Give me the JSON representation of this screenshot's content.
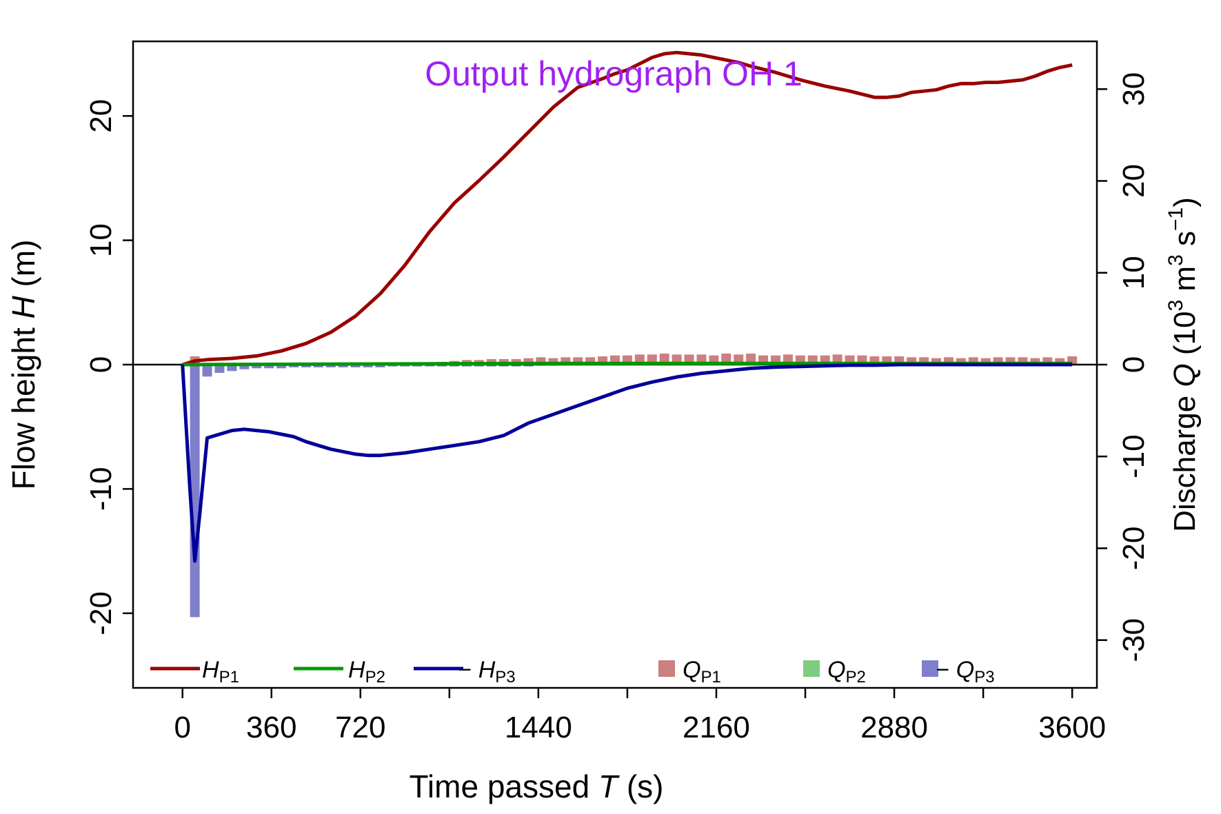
{
  "chart_data": {
    "type": "line",
    "title": "Output hydrograph OH 1",
    "title_color": "#a020f0",
    "xlabel": "Time passed",
    "xlabel_symbol": "T",
    "xlabel_unit": "(s)",
    "ylabel": "Flow height",
    "ylabel_symbol": "H",
    "ylabel_unit": "(m)",
    "y2label": "Discharge",
    "y2label_symbol": "Q",
    "y2label_unit_open": "(10",
    "y2label_unit_exp1": "3",
    "y2label_unit_mid": " m",
    "y2label_unit_exp2": "3",
    "y2label_unit_s": " s",
    "y2label_unit_exp3": "−1",
    "y2label_unit_close": ")",
    "xlim": [
      -200,
      3700
    ],
    "ylim": [
      -26,
      26
    ],
    "y2lim": [
      -35.2,
      35.2
    ],
    "x_tick_positions": [
      0,
      360,
      720,
      1080,
      1440,
      1800,
      2160,
      2520,
      2880,
      3240,
      3600
    ],
    "x_tick_labels": [
      "0",
      "360",
      "720",
      "",
      "1440",
      "",
      "2160",
      "",
      "2880",
      "",
      "3600"
    ],
    "y_ticks": [
      -20,
      -10,
      0,
      10,
      20
    ],
    "y_tick_labels": [
      "-20",
      "-10",
      "0",
      "10",
      "20"
    ],
    "y2_ticks": [
      -30,
      -20,
      -10,
      0,
      10,
      20,
      30
    ],
    "y2_tick_labels": [
      "-30",
      "-20",
      "-10",
      "0",
      "10",
      "20",
      "30"
    ],
    "legend_position": "bottom",
    "legend": [
      {
        "kind": "line",
        "prefix": "",
        "symbol": "H",
        "sub": "P1",
        "color": "#990000"
      },
      {
        "kind": "line",
        "prefix": "",
        "symbol": "H",
        "sub": "P2",
        "color": "#009900"
      },
      {
        "kind": "line",
        "prefix": "− ",
        "symbol": "H",
        "sub": "P3",
        "color": "#000099"
      },
      {
        "kind": "bar",
        "prefix": "",
        "symbol": "Q",
        "sub": "P1",
        "color": "#cc7f7f"
      },
      {
        "kind": "bar",
        "prefix": "",
        "symbol": "Q",
        "sub": "P2",
        "color": "#7fcc7f"
      },
      {
        "kind": "bar",
        "prefix": "− ",
        "symbol": "Q",
        "sub": "P3",
        "color": "#7f7fcc"
      }
    ],
    "lines": [
      {
        "name": "H_P1",
        "color": "#990000",
        "x": [
          0,
          50,
          100,
          200,
          300,
          400,
          500,
          600,
          700,
          800,
          900,
          1000,
          1100,
          1200,
          1300,
          1400,
          1500,
          1600,
          1700,
          1750,
          1800,
          1850,
          1900,
          1950,
          2000,
          2050,
          2100,
          2150,
          2200,
          2250,
          2300,
          2400,
          2500,
          2600,
          2700,
          2800,
          2850,
          2900,
          2950,
          3000,
          3050,
          3100,
          3150,
          3200,
          3250,
          3300,
          3400,
          3450,
          3500,
          3550,
          3600
        ],
        "y": [
          0,
          0.3,
          0.4,
          0.5,
          0.7,
          1.1,
          1.7,
          2.6,
          3.9,
          5.7,
          8.0,
          10.7,
          13.0,
          14.8,
          16.7,
          18.7,
          20.7,
          22.3,
          23.0,
          23.4,
          23.7,
          24.2,
          24.7,
          25.0,
          25.1,
          25.0,
          24.9,
          24.7,
          24.5,
          24.3,
          24.0,
          23.5,
          22.9,
          22.4,
          22.0,
          21.5,
          21.5,
          21.6,
          21.9,
          22.0,
          22.1,
          22.4,
          22.6,
          22.6,
          22.7,
          22.7,
          22.9,
          23.2,
          23.6,
          23.9,
          24.1
        ]
      },
      {
        "name": "H_P2",
        "color": "#009900",
        "x": [
          0,
          720,
          1440,
          2160,
          2880,
          3600
        ],
        "y": [
          0,
          0.05,
          0.1,
          0.1,
          0.1,
          0.1
        ]
      },
      {
        "name": "-H_P3",
        "color": "#000099",
        "x": [
          0,
          30,
          50,
          70,
          100,
          150,
          200,
          250,
          300,
          350,
          400,
          450,
          500,
          550,
          600,
          650,
          700,
          750,
          800,
          900,
          1000,
          1100,
          1200,
          1300,
          1400,
          1500,
          1600,
          1700,
          1800,
          1900,
          2000,
          2100,
          2200,
          2300,
          2400,
          2500,
          2600,
          2700,
          2800,
          2900,
          3000,
          3200,
          3400,
          3600
        ],
        "y": [
          0,
          -10.0,
          -15.8,
          -12.0,
          -5.9,
          -5.6,
          -5.3,
          -5.2,
          -5.3,
          -5.4,
          -5.6,
          -5.8,
          -6.2,
          -6.5,
          -6.8,
          -7.0,
          -7.2,
          -7.3,
          -7.3,
          -7.1,
          -6.8,
          -6.5,
          -6.2,
          -5.7,
          -4.7,
          -4.0,
          -3.3,
          -2.6,
          -1.9,
          -1.4,
          -1.0,
          -0.7,
          -0.5,
          -0.3,
          -0.2,
          -0.15,
          -0.1,
          -0.05,
          -0.05,
          0,
          0,
          0,
          0,
          0
        ]
      }
    ],
    "bars": [
      {
        "name": "Q_P1",
        "color": "#cc7f7f",
        "x": [
          50,
          100,
          150,
          200,
          250,
          300,
          350,
          400,
          450,
          500,
          550,
          600,
          650,
          700,
          750,
          800,
          850,
          900,
          950,
          1000,
          1050,
          1100,
          1150,
          1200,
          1250,
          1300,
          1350,
          1400,
          1450,
          1500,
          1550,
          1600,
          1650,
          1700,
          1750,
          1800,
          1850,
          1900,
          1950,
          2000,
          2050,
          2100,
          2150,
          2200,
          2250,
          2300,
          2350,
          2400,
          2450,
          2500,
          2550,
          2600,
          2650,
          2700,
          2750,
          2800,
          2850,
          2900,
          2950,
          3000,
          3050,
          3100,
          3150,
          3200,
          3250,
          3300,
          3350,
          3400,
          3450,
          3500,
          3550,
          3600
        ],
        "values": [
          0.9,
          0.2,
          0.2,
          0.2,
          0.2,
          0.2,
          0.2,
          0.1,
          0.1,
          0.1,
          0.1,
          0.1,
          0.1,
          0.1,
          0.1,
          0.1,
          0.1,
          0.1,
          0.2,
          0.2,
          0.3,
          0.4,
          0.5,
          0.5,
          0.6,
          0.6,
          0.6,
          0.7,
          0.8,
          0.7,
          0.8,
          0.8,
          0.8,
          0.9,
          1.0,
          1.0,
          1.1,
          1.1,
          1.2,
          1.1,
          1.1,
          1.1,
          1.0,
          1.2,
          1.1,
          1.2,
          1.0,
          1.0,
          1.1,
          1.0,
          1.0,
          1.0,
          1.1,
          1.0,
          1.0,
          0.9,
          0.9,
          0.9,
          0.8,
          0.8,
          0.7,
          0.8,
          0.7,
          0.8,
          0.7,
          0.8,
          0.8,
          0.8,
          0.7,
          0.8,
          0.7,
          0.9
        ]
      },
      {
        "name": "Q_P2",
        "color": "#7fcc7f",
        "x": [
          50,
          720,
          1440,
          2160,
          2880,
          3600
        ],
        "values": [
          0,
          0,
          0,
          0,
          0,
          0
        ]
      },
      {
        "name": "-Q_P3",
        "color": "#7f7fcc",
        "x": [
          50,
          100,
          150,
          200,
          250,
          300,
          350,
          400,
          450,
          500,
          550,
          600,
          650,
          700,
          750,
          800,
          850,
          900,
          950,
          1000,
          1050,
          1100,
          1150,
          1200,
          1250,
          1300,
          1350,
          1400,
          1450,
          1500
        ],
        "values": [
          -27.5,
          -1.3,
          -0.9,
          -0.7,
          -0.5,
          -0.4,
          -0.4,
          -0.4,
          -0.3,
          -0.3,
          -0.3,
          -0.3,
          -0.3,
          -0.3,
          -0.3,
          -0.3,
          -0.2,
          -0.2,
          -0.2,
          -0.2,
          -0.2,
          -0.2,
          -0.2,
          -0.2,
          -0.2,
          -0.2,
          -0.2,
          -0.2,
          -0.1,
          -0.1
        ]
      }
    ]
  }
}
